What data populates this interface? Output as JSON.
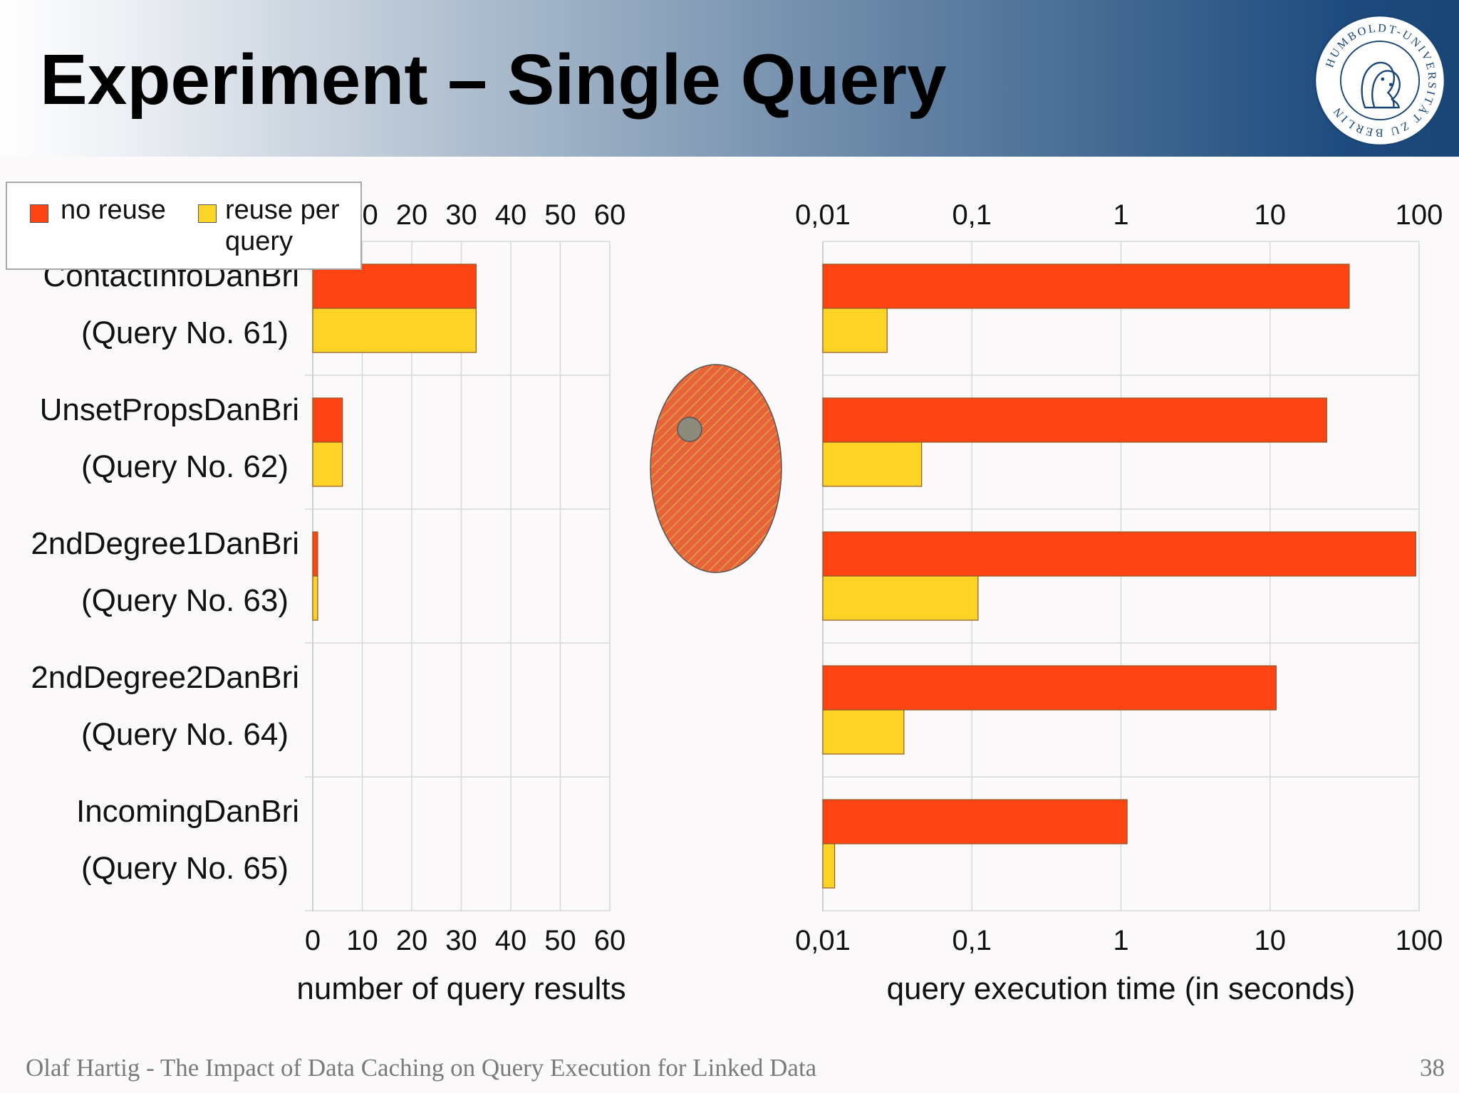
{
  "slide": {
    "title": "Experiment – Single Query",
    "footer": "Olaf Hartig - The Impact of Data Caching on Query Execution for Linked Data",
    "page_number": "38"
  },
  "logo": {
    "text": "HUMBOLDT-UNIVERSITÄT ZU BERLIN",
    "icon": "university-seal"
  },
  "legend": {
    "items": [
      {
        "label": "no reuse",
        "color": "#fe4412"
      },
      {
        "label": "reuse per query",
        "color": "#fdd426"
      }
    ]
  },
  "colors": {
    "no_reuse": "#fe4412",
    "reuse_per_query": "#fdd426",
    "highlight_ellipse": "#e8623a"
  },
  "chart_data": [
    {
      "type": "bar",
      "orientation": "horizontal",
      "categories": [
        [
          "ContactInfoDanBri",
          "(Query No. 61)"
        ],
        [
          "UnsetPropsDanBri",
          "(Query No. 62)"
        ],
        [
          "2ndDegree1DanBri",
          "(Query No. 63)"
        ],
        [
          "2ndDegree2DanBri",
          "(Query No. 64)"
        ],
        [
          "IncomingDanBri",
          "(Query No. 65)"
        ]
      ],
      "series": [
        {
          "name": "no reuse",
          "values": [
            33,
            6,
            1,
            0,
            0
          ]
        },
        {
          "name": "reuse per query",
          "values": [
            33,
            6,
            1,
            0,
            0
          ]
        }
      ],
      "xlabel": "number of query results",
      "xlim": [
        0,
        60
      ],
      "ticks": [
        "0",
        "10",
        "20",
        "30",
        "40",
        "50",
        "60"
      ],
      "grid": true,
      "legend": "top-left"
    },
    {
      "type": "bar",
      "orientation": "horizontal",
      "xscale": "log",
      "categories": [
        "Query No. 61",
        "Query No. 62",
        "Query No. 63",
        "Query No. 64",
        "Query No. 65"
      ],
      "series": [
        {
          "name": "no reuse",
          "values": [
            34,
            24,
            95,
            11,
            1.1
          ]
        },
        {
          "name": "reuse per query",
          "values": [
            0.027,
            0.046,
            0.11,
            0.035,
            0.012
          ]
        }
      ],
      "xlabel": "query execution time (in seconds)",
      "xlim": [
        0.01,
        100
      ],
      "ticks": [
        "0,01",
        "0,1",
        "1",
        "10",
        "100"
      ],
      "grid": true
    }
  ]
}
